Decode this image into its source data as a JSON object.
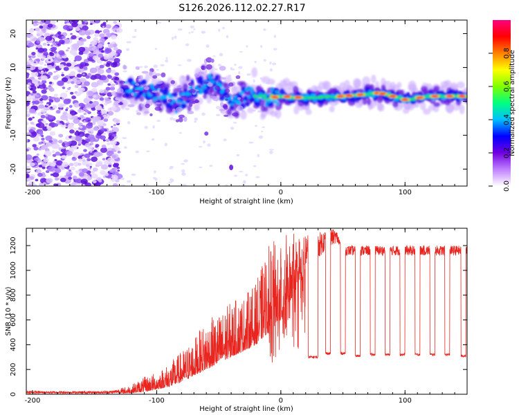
{
  "figure_title": "S126.2026.112.02.27.R17",
  "chart_data": [
    {
      "type": "heatmap",
      "title": "",
      "xlabel": "Height of straight line (km)",
      "ylabel": "Frequency (Hz)",
      "xlim": [
        -205,
        150
      ],
      "ylim": [
        -25,
        24
      ],
      "x_ticks": [
        -200,
        -100,
        0,
        100
      ],
      "y_ticks": [
        -20,
        -10,
        0,
        10,
        20
      ],
      "colorbar": {
        "label": "Normalized spectral amplitude",
        "range": [
          0,
          1
        ],
        "ticks": [
          0.0,
          0.2,
          0.4,
          0.6,
          0.8
        ],
        "tick_labels": [
          "0.0",
          "0.2",
          "0.4",
          "0.6",
          "0.8"
        ],
        "colors": [
          "#ffffff",
          "#c080ff",
          "#7000e0",
          "#0000ff",
          "#00c0ff",
          "#00ff80",
          "#80ff00",
          "#ffff00",
          "#ff8000",
          "#ff0000",
          "#ff0080"
        ]
      },
      "features": {
        "noise_region_x": [
          -205,
          -130
        ],
        "track_points": [
          {
            "x": -128,
            "y": 4
          },
          {
            "x": -110,
            "y": 3
          },
          {
            "x": -95,
            "y": 2
          },
          {
            "x": -85,
            "y": -1
          },
          {
            "x": -75,
            "y": 2
          },
          {
            "x": -60,
            "y": 6
          },
          {
            "x": -50,
            "y": 4
          },
          {
            "x": -40,
            "y": 0
          },
          {
            "x": -25,
            "y": 2
          },
          {
            "x": -10,
            "y": 1
          },
          {
            "x": 0,
            "y": 1.5
          },
          {
            "x": 20,
            "y": 1
          },
          {
            "x": 50,
            "y": 1.5
          },
          {
            "x": 80,
            "y": 2.5
          },
          {
            "x": 100,
            "y": 0.5
          },
          {
            "x": 120,
            "y": 1.5
          },
          {
            "x": 150,
            "y": 1.5
          }
        ]
      }
    },
    {
      "type": "line",
      "title": "",
      "xlabel": "Height of straight line (km)",
      "ylabel": "SNR (10 * v/v)",
      "xlim": [
        -205,
        150
      ],
      "ylim": [
        0,
        1340
      ],
      "x_ticks": [
        -200,
        -100,
        0,
        100
      ],
      "y_ticks": [
        0,
        200,
        400,
        600,
        800,
        1000,
        1200
      ],
      "color": "#e8251e",
      "series": [
        {
          "name": "SNR",
          "x": [
            -205,
            -190,
            -170,
            -150,
            -135,
            -120,
            -110,
            -100,
            -90,
            -80,
            -70,
            -60,
            -50,
            -40,
            -30,
            -20,
            -10,
            0,
            5,
            10,
            15,
            20,
            25,
            30,
            35,
            40,
            45,
            50,
            60,
            70,
            80,
            90,
            100,
            110,
            120,
            130,
            140,
            150
          ],
          "low": [
            5,
            5,
            5,
            5,
            5,
            10,
            20,
            40,
            60,
            100,
            150,
            200,
            250,
            300,
            350,
            400,
            500,
            600,
            700,
            800,
            900,
            950,
            1000,
            1050,
            1100,
            1150,
            1200,
            1100,
            1100,
            1100,
            1100,
            1100,
            1100,
            1100,
            1100,
            1100,
            1100,
            1100
          ],
          "high": [
            30,
            25,
            25,
            25,
            30,
            80,
            140,
            180,
            250,
            350,
            450,
            600,
            650,
            750,
            800,
            900,
            1200,
            1300,
            1300,
            1300,
            1300,
            1300,
            1300,
            1300,
            1330,
            1340,
            1320,
            1200,
            1200,
            1200,
            1200,
            1200,
            1200,
            1200,
            1200,
            1200,
            1200,
            1200
          ],
          "dropouts": [
            {
              "start": 22,
              "end": 30,
              "value": 300
            },
            {
              "start": 36,
              "end": 40,
              "value": 330
            },
            {
              "start": 48,
              "end": 52,
              "value": 330
            },
            {
              "start": 60,
              "end": 64,
              "value": 310
            },
            {
              "start": 72,
              "end": 76,
              "value": 320
            },
            {
              "start": 84,
              "end": 88,
              "value": 320
            },
            {
              "start": 96,
              "end": 100,
              "value": 320
            },
            {
              "start": 108,
              "end": 112,
              "value": 320
            },
            {
              "start": 120,
              "end": 124,
              "value": 320
            },
            {
              "start": 132,
              "end": 136,
              "value": 320
            },
            {
              "start": 145,
              "end": 149,
              "value": 310
            }
          ]
        }
      ]
    }
  ]
}
